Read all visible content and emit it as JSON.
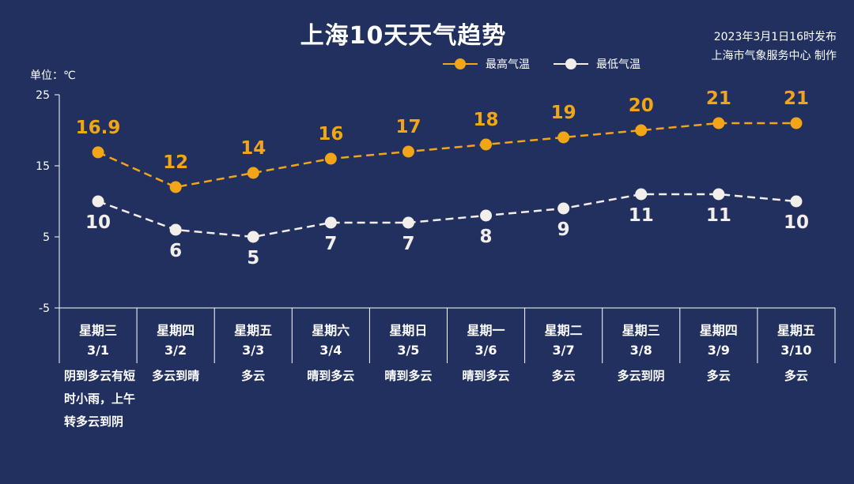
{
  "header": {
    "title": "上海10天天气趋势",
    "publish_time": "2023年3月1日16时发布",
    "publisher": "上海市气象服务中心 制作"
  },
  "unit_label": "单位：℃",
  "colors": {
    "background": "#22305f",
    "high": "#f2a516",
    "low": "#f2eeea",
    "axis": "#ffffff"
  },
  "chart_data": {
    "type": "line",
    "title": "上海10天天气趋势",
    "ylabel": "单位：℃",
    "ylim": [
      -5,
      25
    ],
    "yticks": [
      -5,
      5,
      15,
      25
    ],
    "grid": false,
    "legend": "top-right",
    "categories": [
      "3/1",
      "3/2",
      "3/3",
      "3/4",
      "3/5",
      "3/6",
      "3/7",
      "3/8",
      "3/9",
      "3/10"
    ],
    "weekdays": [
      "星期三",
      "星期四",
      "星期五",
      "星期六",
      "星期日",
      "星期一",
      "星期二",
      "星期三",
      "星期四",
      "星期五"
    ],
    "weather": [
      "阴到多云有短时小雨，上午转多云到阴",
      "多云到晴",
      "多云",
      "晴到多云",
      "晴到多云",
      "晴到多云",
      "多云",
      "多云到阴",
      "多云",
      "多云"
    ],
    "series": [
      {
        "name": "最高气温",
        "values": [
          16.9,
          12,
          14,
          16,
          17,
          18,
          19,
          20,
          21,
          21
        ],
        "labels": [
          "16.9",
          "12",
          "14",
          "16",
          "17",
          "18",
          "19",
          "20",
          "21",
          "21"
        ]
      },
      {
        "name": "最低气温",
        "values": [
          10,
          6,
          5,
          7,
          7,
          8,
          9,
          11,
          11,
          10
        ],
        "labels": [
          "10",
          "6",
          "5",
          "7",
          "7",
          "8",
          "9",
          "11",
          "11",
          "10"
        ]
      }
    ]
  }
}
